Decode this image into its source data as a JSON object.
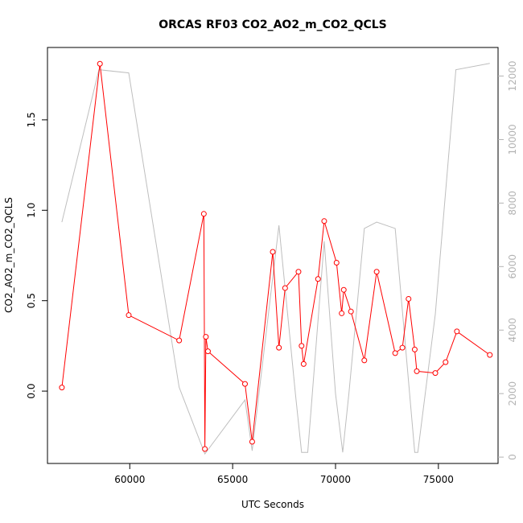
{
  "chart_data": {
    "type": "line",
    "title": "ORCAS RF03 CO2_AO2_m_CO2_QCLS",
    "xlabel": "UTC Seconds",
    "ylabel": "CO2_AO2_m_CO2_QCLS",
    "xlim": [
      56000,
      77900
    ],
    "ylim": [
      -0.4,
      1.9
    ],
    "y2lim": [
      -200,
      12900
    ],
    "x_ticks": [
      60000,
      65000,
      70000,
      75000
    ],
    "y_ticks": [
      0.0,
      0.5,
      1.0,
      1.5
    ],
    "y2_ticks": [
      0,
      2000,
      4000,
      6000,
      8000,
      10000,
      12000
    ],
    "x_tick_labels": [
      "60000",
      "65000",
      "70000",
      "75000"
    ],
    "y_tick_labels": [
      "0.0",
      "0.5",
      "1.0",
      "1.5"
    ],
    "y2_tick_labels": [
      "0",
      "2000",
      "4000",
      "6000",
      "8000",
      "10000",
      "12000"
    ],
    "grid": false,
    "series": [
      {
        "role": "primary",
        "color": "#ff0000",
        "marker": "open-circle",
        "points": [
          [
            56700,
            0.02
          ],
          [
            58550,
            1.81
          ],
          [
            59950,
            0.42
          ],
          [
            62400,
            0.28
          ],
          [
            63600,
            0.98
          ],
          [
            63650,
            -0.32
          ],
          [
            63700,
            0.3
          ],
          [
            63800,
            0.22
          ],
          [
            65600,
            0.04
          ],
          [
            65950,
            -0.28
          ],
          [
            66950,
            0.77
          ],
          [
            67250,
            0.24
          ],
          [
            67550,
            0.57
          ],
          [
            68200,
            0.66
          ],
          [
            68350,
            0.25
          ],
          [
            68450,
            0.15
          ],
          [
            69150,
            0.62
          ],
          [
            69450,
            0.94
          ],
          [
            70050,
            0.71
          ],
          [
            70300,
            0.43
          ],
          [
            70400,
            0.56
          ],
          [
            70750,
            0.44
          ],
          [
            71400,
            0.17
          ],
          [
            72000,
            0.66
          ],
          [
            72900,
            0.21
          ],
          [
            73250,
            0.24
          ],
          [
            73550,
            0.51
          ],
          [
            73850,
            0.23
          ],
          [
            73950,
            0.11
          ],
          [
            74850,
            0.1
          ],
          [
            75350,
            0.16
          ],
          [
            75900,
            0.33
          ],
          [
            77500,
            0.2
          ]
        ]
      },
      {
        "role": "secondary",
        "axis": "right",
        "color": "#bebebe",
        "points": [
          [
            56700,
            7400
          ],
          [
            58500,
            12200
          ],
          [
            59950,
            12100
          ],
          [
            62400,
            2200
          ],
          [
            63650,
            100
          ],
          [
            65600,
            1800
          ],
          [
            65950,
            200
          ],
          [
            67250,
            7300
          ],
          [
            68050,
            2000
          ],
          [
            68350,
            150
          ],
          [
            68650,
            150
          ],
          [
            69450,
            6800
          ],
          [
            70000,
            2000
          ],
          [
            70350,
            150
          ],
          [
            70650,
            2000
          ],
          [
            71400,
            7200
          ],
          [
            72000,
            7400
          ],
          [
            72900,
            7200
          ],
          [
            73850,
            150
          ],
          [
            74000,
            150
          ],
          [
            74850,
            4500
          ],
          [
            75850,
            12200
          ],
          [
            77500,
            12400
          ]
        ]
      }
    ]
  }
}
